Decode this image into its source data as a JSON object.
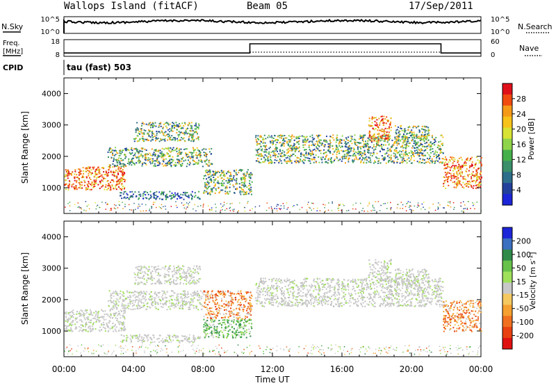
{
  "header": {
    "site": "Wallops Island (fitACF)",
    "beam": "Beam 05",
    "date": "17/Sep/2011"
  },
  "top_panel": {
    "left_label": "N.Sky",
    "right_label": "N.Search",
    "left_ticks": [
      "10^5",
      "10^0"
    ],
    "right_ticks": [
      "10^5",
      "10^0"
    ]
  },
  "freq_panel": {
    "label_line1": "Freq.",
    "label_line2": "[MHz]",
    "left_ticks": [
      "18",
      "8"
    ],
    "right_ticks": [
      "60",
      "0"
    ],
    "right_label": "Nave",
    "freq_profile": [
      {
        "t": 0.0,
        "f": 10
      },
      {
        "t": 10.7,
        "f": 10
      },
      {
        "t": 10.7,
        "f": 15.5
      },
      {
        "t": 21.7,
        "f": 15.5
      },
      {
        "t": 21.7,
        "f": 10
      },
      {
        "t": 24.0,
        "f": 10
      }
    ]
  },
  "cpid": {
    "label": "CPID",
    "text": "tau (fast) 503"
  },
  "chart_data": [
    {
      "type": "heatmap",
      "name": "power",
      "xlabel": "",
      "ylabel": "Slant Range [km]",
      "xlim": [
        0,
        24
      ],
      "ylim": [
        180,
        4500
      ],
      "yticks": [
        1000,
        2000,
        3000,
        4000
      ],
      "colorbar": {
        "title": "Power [dB]",
        "ticks": [
          "28",
          "24",
          "20",
          "16",
          "12",
          "8",
          "4"
        ],
        "colors": [
          "#e0101a",
          "#f04a10",
          "#f59a18",
          "#f7c21a",
          "#d8e234",
          "#8ed44a",
          "#45b04a",
          "#3a8f6a",
          "#2d6e8a",
          "#223f9c",
          "#1d25d8"
        ]
      },
      "bands": [
        {
          "x0": 0.0,
          "x1": 3.5,
          "y0": 950,
          "y1": 1700,
          "level": "high"
        },
        {
          "x0": 2.5,
          "x1": 8.5,
          "y0": 1700,
          "y1": 2300,
          "level": "mid"
        },
        {
          "x0": 4.0,
          "x1": 7.8,
          "y0": 2500,
          "y1": 3100,
          "level": "mid"
        },
        {
          "x0": 3.2,
          "x1": 7.8,
          "y0": 650,
          "y1": 900,
          "level": "low"
        },
        {
          "x0": 8.0,
          "x1": 10.8,
          "y0": 800,
          "y1": 1600,
          "level": "mid"
        },
        {
          "x0": 11.0,
          "x1": 21.8,
          "y0": 1800,
          "y1": 2700,
          "level": "mid"
        },
        {
          "x0": 17.5,
          "x1": 18.8,
          "y0": 2500,
          "y1": 3300,
          "level": "high"
        },
        {
          "x0": 19.0,
          "x1": 21.0,
          "y0": 2500,
          "y1": 3000,
          "level": "mid"
        },
        {
          "x0": 21.8,
          "x1": 24.0,
          "y0": 1000,
          "y1": 2000,
          "level": "high"
        }
      ]
    },
    {
      "type": "heatmap",
      "name": "velocity",
      "xlabel": "Time UT",
      "ylabel": "Slant Range [km]",
      "xlim": [
        0,
        24
      ],
      "ylim": [
        180,
        4500
      ],
      "yticks": [
        1000,
        2000,
        3000,
        4000
      ],
      "xticks": [
        "00:00",
        "04:00",
        "08:00",
        "12:00",
        "16:00",
        "20:00",
        "00:00"
      ],
      "colorbar": {
        "title": "Velocity [m s",
        "title_sup": "-1",
        "title_end": "]",
        "ticks": [
          "200",
          "100",
          "50",
          "15",
          "-15",
          "-50",
          "-100",
          "-200"
        ],
        "colors": [
          "#1d25d8",
          "#3b6fc0",
          "#2f8a4a",
          "#66c24a",
          "#9fe05a",
          "#c8c8c8",
          "#f5c860",
          "#f5a030",
          "#f07020",
          "#e84010",
          "#e01010"
        ]
      },
      "bands": [
        {
          "x0": 0.0,
          "x1": 3.5,
          "y0": 1000,
          "y1": 1700,
          "level": "grey"
        },
        {
          "x0": 2.5,
          "x1": 8.0,
          "y0": 1700,
          "y1": 2300,
          "level": "grey"
        },
        {
          "x0": 4.0,
          "x1": 7.8,
          "y0": 2500,
          "y1": 3100,
          "level": "grey"
        },
        {
          "x0": 3.2,
          "x1": 7.8,
          "y0": 650,
          "y1": 900,
          "level": "grey"
        },
        {
          "x0": 8.0,
          "x1": 10.8,
          "y0": 800,
          "y1": 1400,
          "level": "green"
        },
        {
          "x0": 8.0,
          "x1": 10.8,
          "y0": 1400,
          "y1": 2300,
          "level": "orange"
        },
        {
          "x0": 11.0,
          "x1": 21.8,
          "y0": 1800,
          "y1": 2700,
          "level": "grey"
        },
        {
          "x0": 17.5,
          "x1": 18.8,
          "y0": 2600,
          "y1": 3300,
          "level": "grey"
        },
        {
          "x0": 19.0,
          "x1": 21.0,
          "y0": 2500,
          "y1": 3000,
          "level": "grey"
        },
        {
          "x0": 21.8,
          "x1": 24.0,
          "y0": 1000,
          "y1": 2000,
          "level": "orange"
        }
      ]
    }
  ]
}
